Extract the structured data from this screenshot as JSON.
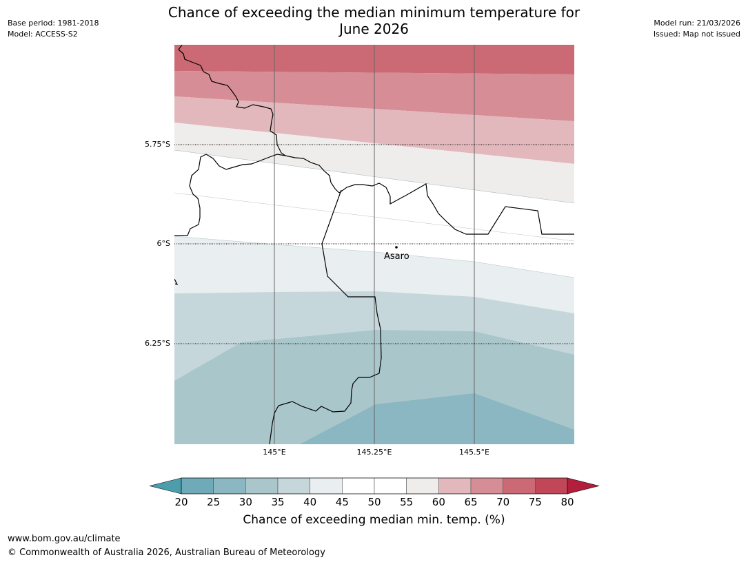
{
  "title": {
    "line1": "Chance of exceeding the median minimum temperature for",
    "line2": "June 2026"
  },
  "meta": {
    "base_period": "Base period: 1981-2018",
    "model": "Model: ACCESS-S2",
    "model_run": "Model run: 21/03/2026",
    "issued": "Issued: Map not issued"
  },
  "map": {
    "latitude_labels": [
      "5.75°S",
      "6°S",
      "6.25°S"
    ],
    "longitude_labels": [
      "145°E",
      "145.25°E",
      "145.5°E"
    ],
    "place": "Asaro"
  },
  "colorbar": {
    "title": "Chance of exceeding median min. temp. (%)",
    "ticks": [
      "20",
      "25",
      "30",
      "35",
      "40",
      "45",
      "50",
      "55",
      "60",
      "65",
      "70",
      "75",
      "80"
    ],
    "colors": [
      "#6eaab7",
      "#8ab7c1",
      "#a9c6cb",
      "#c6d7dc",
      "#e9eef0",
      "#ffffff",
      "#ffffff",
      "#efedec",
      "#e2b8bd",
      "#d68d95",
      "#cb6a74",
      "#c04658"
    ],
    "under_color": "#4d9eac",
    "over_color": "#b21e3c"
  },
  "footer": {
    "url": "www.bom.gov.au/climate",
    "copyright": "© Commonwealth of Australia 2026, Australian Bureau of Meteorology"
  }
}
